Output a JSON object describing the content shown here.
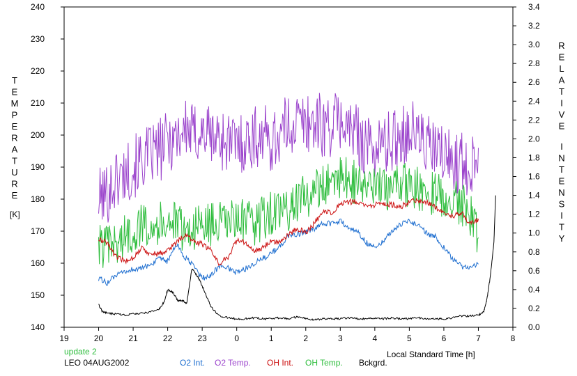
{
  "chart_data": {
    "type": "line",
    "title": "",
    "ylabel_left": [
      "T",
      "E",
      "M",
      "P",
      "E",
      "R",
      "A",
      "T",
      "U",
      "R",
      "E"
    ],
    "ylabel_left_unit": "[K]",
    "ylabel_right": [
      "R",
      "E",
      "L",
      "A",
      "T",
      "I",
      "V",
      "E"
    ],
    "ylabel_right_2": [
      "I",
      "N",
      "T",
      "E",
      "N",
      "S",
      "I",
      "T",
      "Y"
    ],
    "xlabel": "Local Standard Time [h]",
    "ylim_left": [
      140,
      240
    ],
    "ylim_right": [
      0.0,
      3.4
    ],
    "xlim": [
      19,
      32
    ],
    "x_tick_values": [
      19,
      20,
      21,
      22,
      23,
      24,
      25,
      26,
      27,
      28,
      29,
      30,
      31,
      32
    ],
    "x_tick_labels": [
      "19",
      "20",
      "21",
      "22",
      "23",
      "0",
      "1",
      "2",
      "3",
      "4",
      "5",
      "6",
      "7",
      "8"
    ],
    "y_left_ticks": [
      "140",
      "150",
      "160",
      "170",
      "180",
      "190",
      "200",
      "210",
      "220",
      "230",
      "240"
    ],
    "y_right_ticks": [
      "0.0",
      "0.2",
      "0.4",
      "0.6",
      "0.8",
      "1.0",
      "1.2",
      "1.4",
      "1.6",
      "1.8",
      "2.0",
      "2.2",
      "2.4",
      "2.6",
      "2.8",
      "3.0",
      "3.2",
      "3.4"
    ],
    "grid": false,
    "series": [
      {
        "name": "O2 Int.",
        "axis": "right",
        "color": "#1f6fd0",
        "x": [
          20.0,
          20.25,
          20.5,
          20.75,
          21.0,
          21.25,
          21.5,
          21.75,
          22.0,
          22.25,
          22.5,
          22.75,
          23.0,
          23.25,
          23.5,
          23.75,
          24.0,
          24.25,
          24.5,
          24.75,
          25.0,
          25.25,
          25.5,
          25.75,
          26.0,
          26.25,
          26.5,
          26.75,
          27.0,
          27.25,
          27.5,
          27.75,
          28.0,
          28.25,
          28.5,
          28.75,
          29.0,
          29.25,
          29.5,
          29.75,
          30.0,
          30.25,
          30.5,
          30.75,
          31.0
        ],
        "y": [
          0.52,
          0.47,
          0.55,
          0.58,
          0.62,
          0.62,
          0.67,
          0.72,
          0.7,
          0.88,
          0.74,
          0.65,
          0.52,
          0.55,
          0.65,
          0.63,
          0.58,
          0.62,
          0.68,
          0.73,
          0.78,
          0.86,
          0.97,
          0.99,
          1.01,
          1.04,
          1.1,
          1.1,
          1.13,
          1.05,
          1.02,
          0.9,
          0.85,
          0.92,
          1.02,
          1.09,
          1.13,
          1.09,
          1.0,
          0.96,
          0.85,
          0.72,
          0.65,
          0.62,
          0.67
        ]
      },
      {
        "name": "O2 Temp.",
        "axis": "left",
        "color": "#9b44cc",
        "x": [
          20.0,
          20.25,
          20.5,
          20.75,
          21.0,
          21.25,
          21.5,
          21.75,
          22.0,
          22.25,
          22.5,
          22.75,
          23.0,
          23.25,
          23.5,
          23.75,
          24.0,
          24.25,
          24.5,
          24.75,
          25.0,
          25.25,
          25.5,
          25.75,
          26.0,
          26.25,
          26.5,
          26.75,
          27.0,
          27.25,
          27.5,
          27.75,
          28.0,
          28.25,
          28.5,
          28.75,
          29.0,
          29.25,
          29.5,
          29.75,
          30.0,
          30.25,
          30.5,
          30.75,
          31.0
        ],
        "y": [
          180,
          182,
          186,
          188,
          190,
          192,
          194,
          195,
          198,
          200,
          202,
          200,
          201,
          200,
          199,
          198,
          197,
          198,
          199,
          200,
          198,
          200,
          203,
          204,
          204,
          204,
          203,
          203,
          205,
          202,
          200,
          197,
          196,
          197,
          198,
          200,
          202,
          200,
          197,
          195,
          193,
          192,
          191,
          190,
          196
        ]
      },
      {
        "name": "OH Int.",
        "axis": "right",
        "color": "#cc1111",
        "x": [
          20.0,
          20.25,
          20.5,
          20.75,
          21.0,
          21.25,
          21.5,
          21.75,
          22.0,
          22.25,
          22.5,
          22.75,
          23.0,
          23.25,
          23.5,
          23.75,
          24.0,
          24.25,
          24.5,
          24.75,
          25.0,
          25.25,
          25.5,
          25.75,
          26.0,
          26.25,
          26.5,
          26.75,
          27.0,
          27.25,
          27.5,
          27.75,
          28.0,
          28.25,
          28.5,
          28.75,
          29.0,
          29.25,
          29.5,
          29.75,
          30.0,
          30.25,
          30.5,
          30.75,
          31.0
        ],
        "y": [
          0.93,
          0.9,
          0.75,
          0.7,
          0.74,
          0.84,
          0.78,
          0.78,
          0.82,
          0.9,
          0.98,
          0.92,
          0.88,
          0.82,
          0.67,
          0.75,
          0.92,
          0.9,
          0.8,
          0.85,
          0.92,
          0.9,
          0.98,
          1.05,
          1.0,
          1.1,
          1.22,
          1.22,
          1.3,
          1.33,
          1.33,
          1.28,
          1.3,
          1.3,
          1.3,
          1.28,
          1.33,
          1.35,
          1.33,
          1.28,
          1.22,
          1.18,
          1.22,
          1.1,
          1.15
        ]
      },
      {
        "name": "OH Temp.",
        "axis": "left",
        "color": "#2ebd3d",
        "x": [
          20.0,
          20.25,
          20.5,
          20.75,
          21.0,
          21.25,
          21.5,
          21.75,
          22.0,
          22.25,
          22.5,
          22.75,
          23.0,
          23.25,
          23.5,
          23.75,
          24.0,
          24.25,
          24.5,
          24.75,
          25.0,
          25.25,
          25.5,
          25.75,
          26.0,
          26.25,
          26.5,
          26.75,
          27.0,
          27.25,
          27.5,
          27.75,
          28.0,
          28.25,
          28.5,
          28.75,
          29.0,
          29.25,
          29.5,
          29.75,
          30.0,
          30.25,
          30.5,
          30.75,
          31.0
        ],
        "y": [
          166,
          165,
          166,
          168,
          170,
          172,
          173,
          172,
          174,
          172,
          170,
          171,
          172,
          172,
          173,
          172,
          174,
          173,
          172,
          174,
          176,
          175,
          177,
          179,
          181,
          182,
          184,
          186,
          187,
          186,
          185,
          184,
          183,
          183,
          184,
          185,
          184,
          183,
          182,
          182,
          181,
          180,
          178,
          176,
          168
        ]
      },
      {
        "name": "Bckgrd.",
        "axis": "right",
        "color": "#000000",
        "x": [
          20.0,
          20.1,
          20.25,
          20.5,
          20.75,
          21.0,
          21.25,
          21.5,
          21.75,
          21.9,
          22.0,
          22.15,
          22.3,
          22.45,
          22.55,
          22.7,
          22.85,
          22.95,
          23.1,
          23.25,
          23.5,
          23.75,
          24.0,
          24.25,
          24.5,
          24.75,
          25.0,
          25.25,
          25.5,
          25.75,
          26.0,
          26.25,
          26.5,
          26.75,
          27.0,
          27.25,
          27.5,
          27.75,
          28.0,
          28.25,
          28.5,
          28.75,
          29.0,
          29.25,
          29.5,
          29.75,
          30.0,
          30.25,
          30.5,
          30.75,
          31.0,
          31.15,
          31.25,
          31.35,
          31.45,
          31.5
        ],
        "y": [
          0.24,
          0.17,
          0.15,
          0.14,
          0.13,
          0.14,
          0.15,
          0.16,
          0.19,
          0.27,
          0.4,
          0.37,
          0.28,
          0.28,
          0.25,
          0.62,
          0.55,
          0.48,
          0.35,
          0.22,
          0.12,
          0.1,
          0.09,
          0.09,
          0.1,
          0.09,
          0.09,
          0.1,
          0.09,
          0.11,
          0.09,
          0.08,
          0.09,
          0.09,
          0.09,
          0.1,
          0.09,
          0.09,
          0.1,
          0.09,
          0.1,
          0.09,
          0.09,
          0.1,
          0.09,
          0.09,
          0.09,
          0.1,
          0.12,
          0.12,
          0.13,
          0.16,
          0.3,
          0.55,
          0.9,
          1.4
        ]
      }
    ],
    "annotations": {
      "update": "update 2",
      "site_date": "LEO 04AUG2002"
    },
    "legend_placement": "bottom",
    "legend_colors": {
      "update": "#2ebd3d"
    }
  }
}
